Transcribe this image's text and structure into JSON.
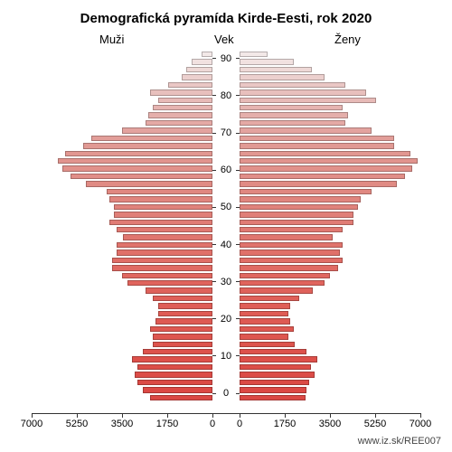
{
  "title": "Demografická pyramída Kirde-Eesti, rok 2020",
  "title_fontsize": 15,
  "labels": {
    "male": "Muži",
    "age": "Vek",
    "female": "Ženy"
  },
  "subtitle_fontsize": 13,
  "source": "www.iz.sk/REE007",
  "source_fontsize": 11,
  "background_color": "#ffffff",
  "tick_fontsize": 11,
  "pyramid": {
    "type": "population_pyramid",
    "age_step": 2,
    "max_age": 90,
    "xmax": 7000,
    "x_ticks": [
      0,
      1750,
      3500,
      5250,
      7000
    ],
    "age_label_every": 10,
    "bar_border_color": "rgba(0,0,0,0.25)",
    "axis_color": "#333333",
    "male": [
      {
        "age": 0,
        "value": 2400,
        "color": "#db4844"
      },
      {
        "age": 2,
        "value": 2700,
        "color": "#db4844"
      },
      {
        "age": 4,
        "value": 2900,
        "color": "#db4a45"
      },
      {
        "age": 6,
        "value": 3000,
        "color": "#dc4c47"
      },
      {
        "age": 8,
        "value": 2900,
        "color": "#dc4e48"
      },
      {
        "age": 10,
        "value": 3100,
        "color": "#dd504a"
      },
      {
        "age": 12,
        "value": 2700,
        "color": "#dd524c"
      },
      {
        "age": 14,
        "value": 2300,
        "color": "#dd544d"
      },
      {
        "age": 16,
        "value": 2300,
        "color": "#de564f"
      },
      {
        "age": 18,
        "value": 2400,
        "color": "#de5851"
      },
      {
        "age": 20,
        "value": 2200,
        "color": "#de5a53"
      },
      {
        "age": 22,
        "value": 2100,
        "color": "#df5c55"
      },
      {
        "age": 24,
        "value": 2100,
        "color": "#df5e57"
      },
      {
        "age": 26,
        "value": 2300,
        "color": "#df6059"
      },
      {
        "age": 28,
        "value": 2600,
        "color": "#df625b"
      },
      {
        "age": 30,
        "value": 3300,
        "color": "#e0645d"
      },
      {
        "age": 32,
        "value": 3500,
        "color": "#e06760"
      },
      {
        "age": 34,
        "value": 3900,
        "color": "#e06a63"
      },
      {
        "age": 36,
        "value": 3900,
        "color": "#e06d66"
      },
      {
        "age": 38,
        "value": 3700,
        "color": "#e07069"
      },
      {
        "age": 40,
        "value": 3700,
        "color": "#e0736c"
      },
      {
        "age": 42,
        "value": 3450,
        "color": "#e0766f"
      },
      {
        "age": 44,
        "value": 3700,
        "color": "#e07972"
      },
      {
        "age": 46,
        "value": 4000,
        "color": "#e07c75"
      },
      {
        "age": 48,
        "value": 3800,
        "color": "#e07f78"
      },
      {
        "age": 50,
        "value": 3800,
        "color": "#e0827b"
      },
      {
        "age": 52,
        "value": 4000,
        "color": "#e0857e"
      },
      {
        "age": 54,
        "value": 4100,
        "color": "#e08881"
      },
      {
        "age": 56,
        "value": 4900,
        "color": "#e08b84"
      },
      {
        "age": 58,
        "value": 5500,
        "color": "#e18e88"
      },
      {
        "age": 60,
        "value": 5800,
        "color": "#e1918b"
      },
      {
        "age": 62,
        "value": 6000,
        "color": "#e1948e"
      },
      {
        "age": 64,
        "value": 5700,
        "color": "#e19791"
      },
      {
        "age": 66,
        "value": 5000,
        "color": "#e19a94"
      },
      {
        "age": 68,
        "value": 4700,
        "color": "#e29e99"
      },
      {
        "age": 70,
        "value": 3500,
        "color": "#e3a39f"
      },
      {
        "age": 72,
        "value": 2600,
        "color": "#e4a9a5"
      },
      {
        "age": 74,
        "value": 2500,
        "color": "#e5afab"
      },
      {
        "age": 76,
        "value": 2300,
        "color": "#e6b4b1"
      },
      {
        "age": 78,
        "value": 2100,
        "color": "#e7bab7"
      },
      {
        "age": 80,
        "value": 2400,
        "color": "#e8c0bd"
      },
      {
        "age": 82,
        "value": 1700,
        "color": "#eac7c5"
      },
      {
        "age": 84,
        "value": 1200,
        "color": "#ecd0ce"
      },
      {
        "age": 86,
        "value": 1000,
        "color": "#eed8d6"
      },
      {
        "age": 88,
        "value": 800,
        "color": "#f1e1e0"
      },
      {
        "age": 90,
        "value": 420,
        "color": "#f3e9e8"
      }
    ],
    "female": [
      {
        "age": 0,
        "value": 2550,
        "color": "#db4844"
      },
      {
        "age": 2,
        "value": 2600,
        "color": "#db4844"
      },
      {
        "age": 4,
        "value": 2700,
        "color": "#db4a45"
      },
      {
        "age": 6,
        "value": 2900,
        "color": "#dc4c47"
      },
      {
        "age": 8,
        "value": 2750,
        "color": "#dc4e48"
      },
      {
        "age": 10,
        "value": 3000,
        "color": "#dd504a"
      },
      {
        "age": 12,
        "value": 2600,
        "color": "#dd524c"
      },
      {
        "age": 14,
        "value": 2150,
        "color": "#dd544d"
      },
      {
        "age": 16,
        "value": 1900,
        "color": "#de564f"
      },
      {
        "age": 18,
        "value": 2100,
        "color": "#de5851"
      },
      {
        "age": 20,
        "value": 1950,
        "color": "#de5a53"
      },
      {
        "age": 22,
        "value": 1900,
        "color": "#df5c55"
      },
      {
        "age": 24,
        "value": 1950,
        "color": "#df5e57"
      },
      {
        "age": 26,
        "value": 2300,
        "color": "#df6059"
      },
      {
        "age": 28,
        "value": 2850,
        "color": "#df625b"
      },
      {
        "age": 30,
        "value": 3300,
        "color": "#e0645d"
      },
      {
        "age": 32,
        "value": 3500,
        "color": "#e06760"
      },
      {
        "age": 34,
        "value": 3800,
        "color": "#e06a63"
      },
      {
        "age": 36,
        "value": 4000,
        "color": "#e06d66"
      },
      {
        "age": 38,
        "value": 3900,
        "color": "#e07069"
      },
      {
        "age": 40,
        "value": 4000,
        "color": "#e0736c"
      },
      {
        "age": 42,
        "value": 3600,
        "color": "#e0766f"
      },
      {
        "age": 44,
        "value": 4000,
        "color": "#e07972"
      },
      {
        "age": 46,
        "value": 4400,
        "color": "#e07c75"
      },
      {
        "age": 48,
        "value": 4400,
        "color": "#e07f78"
      },
      {
        "age": 50,
        "value": 4600,
        "color": "#e0827b"
      },
      {
        "age": 52,
        "value": 4700,
        "color": "#e0857e"
      },
      {
        "age": 54,
        "value": 5100,
        "color": "#e08881"
      },
      {
        "age": 56,
        "value": 6100,
        "color": "#e08b84"
      },
      {
        "age": 58,
        "value": 6400,
        "color": "#e18e88"
      },
      {
        "age": 60,
        "value": 6700,
        "color": "#e1918b"
      },
      {
        "age": 62,
        "value": 6900,
        "color": "#e1948e"
      },
      {
        "age": 64,
        "value": 6600,
        "color": "#e19791"
      },
      {
        "age": 66,
        "value": 6000,
        "color": "#e19a94"
      },
      {
        "age": 68,
        "value": 6000,
        "color": "#e29e99"
      },
      {
        "age": 70,
        "value": 5100,
        "color": "#e3a39f"
      },
      {
        "age": 72,
        "value": 4100,
        "color": "#e4a9a5"
      },
      {
        "age": 74,
        "value": 4200,
        "color": "#e5afab"
      },
      {
        "age": 76,
        "value": 4000,
        "color": "#e6b4b1"
      },
      {
        "age": 78,
        "value": 5300,
        "color": "#e7bab7"
      },
      {
        "age": 80,
        "value": 4900,
        "color": "#e8c0bd"
      },
      {
        "age": 82,
        "value": 4100,
        "color": "#eac7c5"
      },
      {
        "age": 84,
        "value": 3300,
        "color": "#ecd0ce"
      },
      {
        "age": 86,
        "value": 2800,
        "color": "#eed8d6"
      },
      {
        "age": 88,
        "value": 2100,
        "color": "#f1e1e0"
      },
      {
        "age": 90,
        "value": 1100,
        "color": "#f3e9e8"
      }
    ]
  }
}
